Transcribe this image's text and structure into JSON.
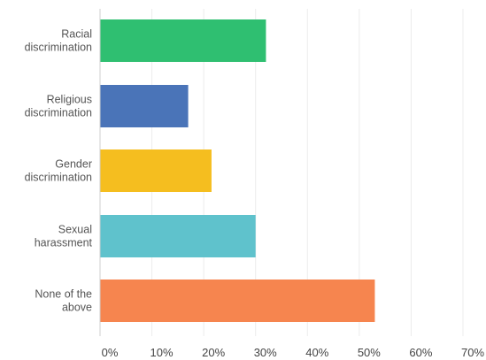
{
  "chart_data": {
    "type": "bar",
    "orientation": "horizontal",
    "categories": [
      "Racial discrimination",
      "Religious discrimination",
      "Gender discrimination",
      "Sexual harassment",
      "None of the above"
    ],
    "category_lines": [
      [
        "Racial",
        "discrimination"
      ],
      [
        "Religious",
        "discrimination"
      ],
      [
        "Gender",
        "discrimination"
      ],
      [
        "Sexual",
        "harassment"
      ],
      [
        "None of the",
        "above"
      ]
    ],
    "values": [
      32,
      17,
      21.5,
      30,
      53
    ],
    "colors": [
      "#2fbf71",
      "#4a74b8",
      "#f5be1f",
      "#5fc2cc",
      "#f6854f"
    ],
    "xlim": [
      0,
      70
    ],
    "ticks": [
      0,
      10,
      20,
      30,
      40,
      50,
      60,
      70
    ],
    "tick_labels": [
      "0%",
      "10%",
      "20%",
      "30%",
      "40%",
      "50%",
      "60%",
      "70%"
    ],
    "title": "",
    "xlabel": "",
    "ylabel": "",
    "grid": true,
    "legend": "none"
  }
}
